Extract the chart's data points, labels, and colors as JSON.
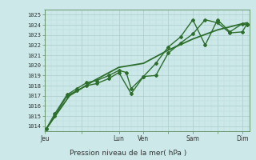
{
  "background_color": "#cce8e8",
  "plot_bg_color": "#cce8e8",
  "grid_color_major": "#aacccc",
  "grid_color_minor": "#bbdddd",
  "line_color": "#2d6e2d",
  "ylim": [
    1013.5,
    1025.5
  ],
  "ylabel_ticks": [
    1014,
    1015,
    1016,
    1017,
    1018,
    1019,
    1020,
    1021,
    1022,
    1023,
    1024,
    1025
  ],
  "xlabel": "Pression niveau de la mer( hPa )",
  "xtick_labels": [
    "Jeu",
    "",
    "Lun",
    "Ven",
    "",
    "Sam",
    "",
    "Dim"
  ],
  "xtick_positions": [
    0,
    1.5,
    3,
    4,
    5,
    6,
    7,
    8
  ],
  "xlim": [
    0,
    8.3
  ],
  "figsize": [
    3.2,
    2.0
  ],
  "dpi": 100,
  "series": [
    {
      "x": [
        0.05,
        0.4,
        0.9,
        1.3,
        1.7,
        2.1,
        2.6,
        3.0,
        3.5,
        4.0,
        4.5,
        5.0,
        5.5,
        6.0,
        6.5,
        7.0,
        7.5,
        8.0,
        8.2
      ],
      "y": [
        1013.7,
        1015.0,
        1017.0,
        1017.5,
        1018.0,
        1018.2,
        1018.7,
        1019.3,
        1017.2,
        1018.9,
        1019.0,
        1021.2,
        1022.2,
        1023.1,
        1024.5,
        1024.2,
        1023.2,
        1023.3,
        1024.1
      ],
      "marker": true,
      "linewidth": 1.0,
      "markersize": 2.0
    },
    {
      "x": [
        0.05,
        0.4,
        0.9,
        1.3,
        1.7,
        2.1,
        2.6,
        3.0,
        3.3,
        3.5,
        4.0,
        4.5,
        5.0,
        5.5,
        6.0,
        6.5,
        7.0,
        7.5,
        8.0,
        8.2
      ],
      "y": [
        1013.7,
        1015.2,
        1017.1,
        1017.7,
        1018.3,
        1018.5,
        1019.0,
        1019.5,
        1019.3,
        1017.7,
        1018.9,
        1020.2,
        1021.8,
        1022.8,
        1024.5,
        1022.0,
        1024.5,
        1023.3,
        1024.1,
        1024.0
      ],
      "marker": true,
      "linewidth": 1.0,
      "markersize": 2.0
    },
    {
      "x": [
        0.05,
        1.0,
        2.0,
        3.0,
        4.0,
        5.0,
        6.0,
        7.0,
        8.0,
        8.2
      ],
      "y": [
        1013.7,
        1017.0,
        1018.5,
        1019.8,
        1020.2,
        1021.5,
        1022.6,
        1023.5,
        1024.1,
        1024.2
      ],
      "marker": false,
      "linewidth": 1.3,
      "markersize": 0
    }
  ]
}
